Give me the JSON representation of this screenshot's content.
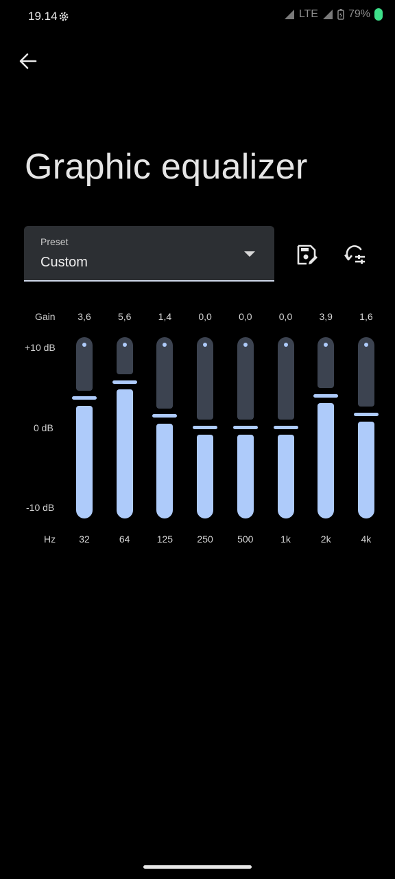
{
  "status": {
    "time": "19.14",
    "network": "LTE",
    "battery": "79%",
    "battery_color": "#3ee08a"
  },
  "title": "Graphic equalizer",
  "preset": {
    "label": "Preset",
    "value": "Custom"
  },
  "labels": {
    "gain": "Gain",
    "plus10": "+10 dB",
    "zero": "0 dB",
    "minus10": "-10 dB",
    "hz": "Hz"
  },
  "accent": "#aecbfa",
  "bands": [
    {
      "freq": "32",
      "gain": "3,6",
      "level": 3.6
    },
    {
      "freq": "64",
      "gain": "5,6",
      "level": 5.6
    },
    {
      "freq": "125",
      "gain": "1,4",
      "level": 1.4
    },
    {
      "freq": "250",
      "gain": "0,0",
      "level": 0.0
    },
    {
      "freq": "500",
      "gain": "0,0",
      "level": 0.0
    },
    {
      "freq": "1k",
      "gain": "0,0",
      "level": 0.0
    },
    {
      "freq": "2k",
      "gain": "3,9",
      "level": 3.9
    },
    {
      "freq": "4k",
      "gain": "1,6",
      "level": 1.6
    }
  ]
}
